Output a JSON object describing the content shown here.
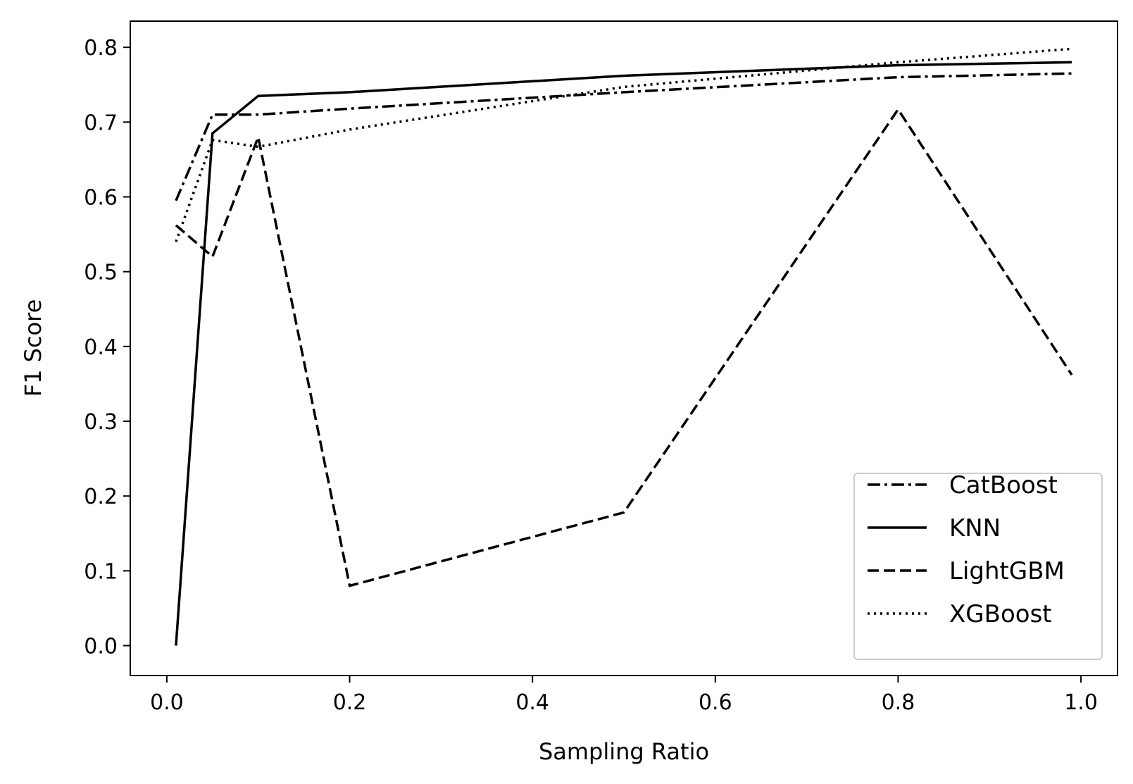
{
  "chart_data": {
    "type": "line",
    "title": "",
    "xlabel": "Sampling Ratio",
    "ylabel": "F1 Score",
    "xlim": [
      -0.04,
      1.04
    ],
    "ylim": [
      -0.04,
      0.835
    ],
    "xticks": [
      0.0,
      0.2,
      0.4,
      0.6,
      0.8,
      1.0
    ],
    "yticks": [
      0.0,
      0.1,
      0.2,
      0.3,
      0.4,
      0.5,
      0.6,
      0.7,
      0.8
    ],
    "xtick_labels": [
      "0.0",
      "0.2",
      "0.4",
      "0.6",
      "0.8",
      "1.0"
    ],
    "ytick_labels": [
      "0.0",
      "0.1",
      "0.2",
      "0.3",
      "0.4",
      "0.5",
      "0.6",
      "0.7",
      "0.8"
    ],
    "grid": false,
    "legend_position": "bottom-right",
    "series": [
      {
        "name": "CatBoost",
        "style": "dashdot",
        "color": "#000000",
        "x": [
          0.01,
          0.05,
          0.1,
          0.2,
          0.5,
          0.8,
          0.99
        ],
        "y": [
          0.595,
          0.71,
          0.71,
          0.718,
          0.74,
          0.76,
          0.765
        ]
      },
      {
        "name": "KNN",
        "style": "solid",
        "color": "#000000",
        "x": [
          0.01,
          0.05,
          0.1,
          0.2,
          0.5,
          0.8,
          0.99
        ],
        "y": [
          0.0,
          0.685,
          0.735,
          0.74,
          0.762,
          0.776,
          0.78
        ]
      },
      {
        "name": "LightGBM",
        "style": "dashed",
        "color": "#000000",
        "x": [
          0.01,
          0.05,
          0.1,
          0.2,
          0.5,
          0.8,
          0.99
        ],
        "y": [
          0.562,
          0.52,
          0.68,
          0.08,
          0.178,
          0.717,
          0.362
        ]
      },
      {
        "name": "XGBoost",
        "style": "dotted",
        "color": "#000000",
        "x": [
          0.01,
          0.05,
          0.1,
          0.2,
          0.5,
          0.8,
          0.99
        ],
        "y": [
          0.54,
          0.676,
          0.667,
          0.69,
          0.747,
          0.78,
          0.798
        ]
      }
    ]
  }
}
